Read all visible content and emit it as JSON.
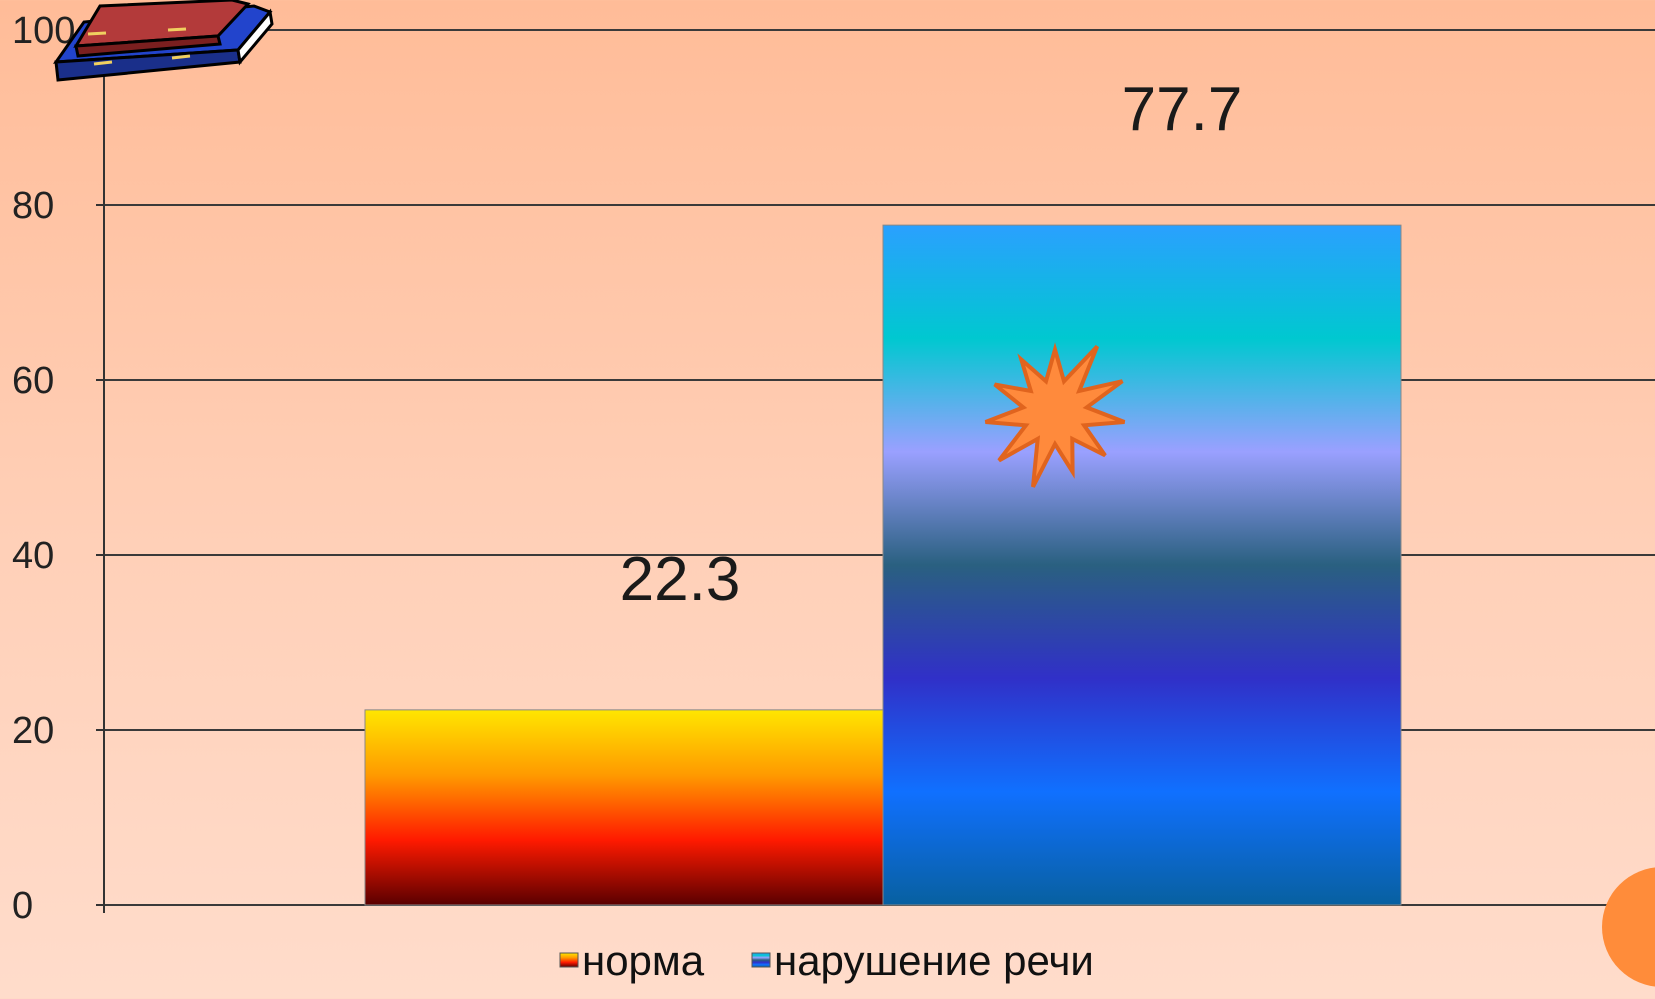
{
  "chart_data": {
    "type": "bar",
    "categories": [
      ""
    ],
    "series": [
      {
        "name": "норма",
        "values": [
          22.3
        ],
        "gradient": [
          "#ffe600",
          "#ff9a00",
          "#ff1a00",
          "#5a0000"
        ]
      },
      {
        "name": "нарушение речи",
        "values": [
          77.7
        ],
        "gradient": [
          "#2aa0ff",
          "#00c8d0",
          "#9aa0ff",
          "#2a6080",
          "#3030c8",
          "#1070ff",
          "#0860a0"
        ]
      }
    ],
    "data_labels": [
      "22.3",
      "77.7"
    ],
    "ylim": [
      0,
      100
    ],
    "yticks": [
      0,
      20,
      40,
      60,
      80,
      100
    ],
    "ytick_labels": [
      "0",
      "20",
      "40",
      "60",
      "80",
      "100"
    ],
    "grid": true,
    "legend": "bottom",
    "decorations": [
      "books-icon",
      "starburst-icon",
      "orange-circle"
    ]
  }
}
